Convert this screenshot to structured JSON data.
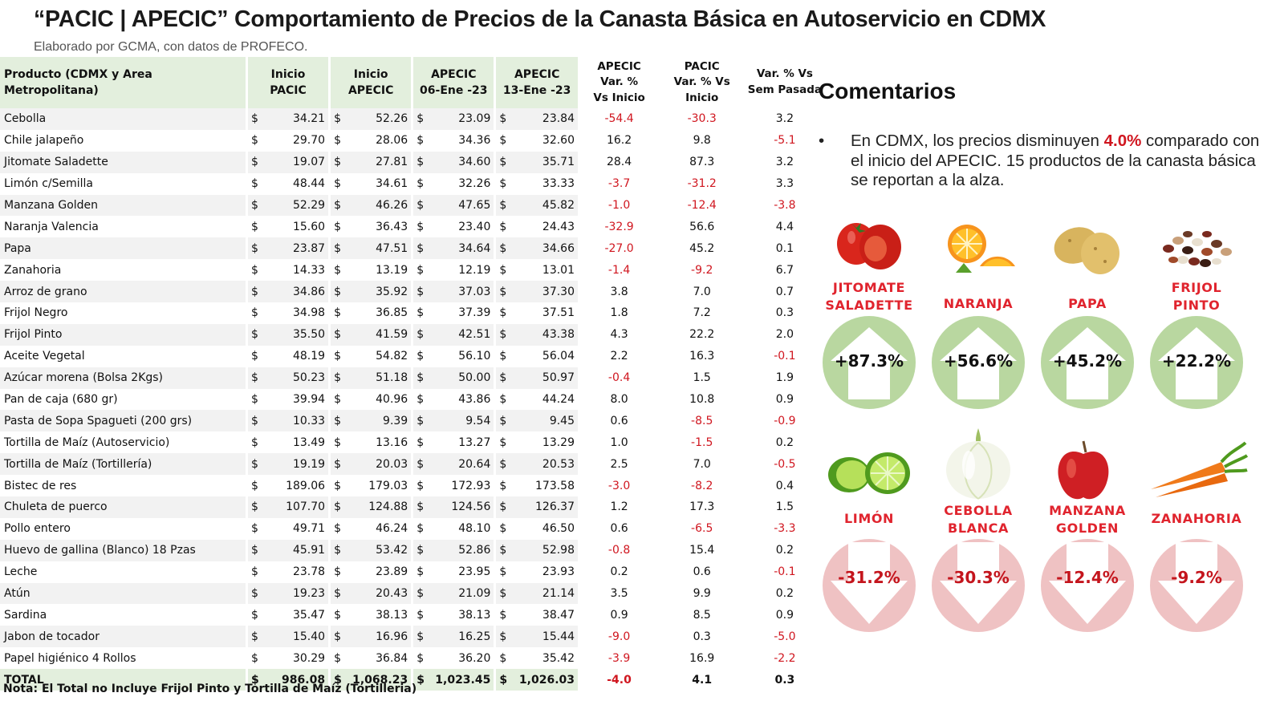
{
  "header": {
    "title": "“PACIC | APECIC” Comportamiento de Precios de la Canasta Básica en Autoservicio en CDMX",
    "subtitle": "Elaborado por GCMA, con datos de PROFECO."
  },
  "table": {
    "headers": {
      "product": "Producto (CDMX y Area Metropolitana)",
      "inicio_pacic": [
        "Inicio",
        "PACIC"
      ],
      "inicio_apecic": [
        "Inicio",
        "APECIC"
      ],
      "apecic_06": [
        "APECIC",
        "06-Ene -23"
      ],
      "apecic_13": [
        "APECIC",
        "13-Ene -23"
      ],
      "var_apecic": [
        "APECIC",
        "Var. %",
        "Vs  Inicio"
      ],
      "var_pacic": [
        "PACIC",
        "Var. % Vs",
        "Inicio"
      ],
      "var_sem": [
        "Var. % Vs",
        "Sem Pasada"
      ]
    },
    "currency": "$",
    "rows": [
      {
        "product": "Cebolla",
        "inicio_pacic": "34.21",
        "inicio_apecic": "52.26",
        "apecic_06": "23.09",
        "apecic_13": "23.84",
        "var_apecic": "-54.4",
        "var_pacic": "-30.3",
        "var_sem": "3.2"
      },
      {
        "product": "Chile jalapeño",
        "inicio_pacic": "29.70",
        "inicio_apecic": "28.06",
        "apecic_06": "34.36",
        "apecic_13": "32.60",
        "var_apecic": "16.2",
        "var_pacic": "9.8",
        "var_sem": "-5.1"
      },
      {
        "product": "Jitomate Saladette",
        "inicio_pacic": "19.07",
        "inicio_apecic": "27.81",
        "apecic_06": "34.60",
        "apecic_13": "35.71",
        "var_apecic": "28.4",
        "var_pacic": "87.3",
        "var_sem": "3.2"
      },
      {
        "product": "Limón c/Semilla",
        "inicio_pacic": "48.44",
        "inicio_apecic": "34.61",
        "apecic_06": "32.26",
        "apecic_13": "33.33",
        "var_apecic": "-3.7",
        "var_pacic": "-31.2",
        "var_sem": "3.3"
      },
      {
        "product": "Manzana Golden",
        "inicio_pacic": "52.29",
        "inicio_apecic": "46.26",
        "apecic_06": "47.65",
        "apecic_13": "45.82",
        "var_apecic": "-1.0",
        "var_pacic": "-12.4",
        "var_sem": "-3.8"
      },
      {
        "product": "Naranja Valencia",
        "inicio_pacic": "15.60",
        "inicio_apecic": "36.43",
        "apecic_06": "23.40",
        "apecic_13": "24.43",
        "var_apecic": "-32.9",
        "var_pacic": "56.6",
        "var_sem": "4.4"
      },
      {
        "product": "Papa",
        "inicio_pacic": "23.87",
        "inicio_apecic": "47.51",
        "apecic_06": "34.64",
        "apecic_13": "34.66",
        "var_apecic": "-27.0",
        "var_pacic": "45.2",
        "var_sem": "0.1"
      },
      {
        "product": "Zanahoria",
        "inicio_pacic": "14.33",
        "inicio_apecic": "13.19",
        "apecic_06": "12.19",
        "apecic_13": "13.01",
        "var_apecic": "-1.4",
        "var_pacic": "-9.2",
        "var_sem": "6.7"
      },
      {
        "product": "Arroz de grano",
        "inicio_pacic": "34.86",
        "inicio_apecic": "35.92",
        "apecic_06": "37.03",
        "apecic_13": "37.30",
        "var_apecic": "3.8",
        "var_pacic": "7.0",
        "var_sem": "0.7"
      },
      {
        "product": "Frijol Negro",
        "inicio_pacic": "34.98",
        "inicio_apecic": "36.85",
        "apecic_06": "37.39",
        "apecic_13": "37.51",
        "var_apecic": "1.8",
        "var_pacic": "7.2",
        "var_sem": "0.3"
      },
      {
        "product": "Frijol Pinto",
        "inicio_pacic": "35.50",
        "inicio_apecic": "41.59",
        "apecic_06": "42.51",
        "apecic_13": "43.38",
        "var_apecic": "4.3",
        "var_pacic": "22.2",
        "var_sem": "2.0"
      },
      {
        "product": "Aceite Vegetal",
        "inicio_pacic": "48.19",
        "inicio_apecic": "54.82",
        "apecic_06": "56.10",
        "apecic_13": "56.04",
        "var_apecic": "2.2",
        "var_pacic": "16.3",
        "var_sem": "-0.1"
      },
      {
        "product": "Azúcar morena (Bolsa 2Kgs)",
        "inicio_pacic": "50.23",
        "inicio_apecic": "51.18",
        "apecic_06": "50.00",
        "apecic_13": "50.97",
        "var_apecic": "-0.4",
        "var_pacic": "1.5",
        "var_sem": "1.9"
      },
      {
        "product": "Pan de caja (680 gr)",
        "inicio_pacic": "39.94",
        "inicio_apecic": "40.96",
        "apecic_06": "43.86",
        "apecic_13": "44.24",
        "var_apecic": "8.0",
        "var_pacic": "10.8",
        "var_sem": "0.9"
      },
      {
        "product": "Pasta de Sopa Spagueti (200 grs)",
        "inicio_pacic": "10.33",
        "inicio_apecic": "9.39",
        "apecic_06": "9.54",
        "apecic_13": "9.45",
        "var_apecic": "0.6",
        "var_pacic": "-8.5",
        "var_sem": "-0.9"
      },
      {
        "product": "Tortilla de Maíz (Autoservicio)",
        "inicio_pacic": "13.49",
        "inicio_apecic": "13.16",
        "apecic_06": "13.27",
        "apecic_13": "13.29",
        "var_apecic": "1.0",
        "var_pacic": "-1.5",
        "var_sem": "0.2"
      },
      {
        "product": "Tortilla de Maíz (Tortillería)",
        "inicio_pacic": "19.19",
        "inicio_apecic": "20.03",
        "apecic_06": "20.64",
        "apecic_13": "20.53",
        "var_apecic": "2.5",
        "var_pacic": "7.0",
        "var_sem": "-0.5"
      },
      {
        "product": "Bistec de res",
        "inicio_pacic": "189.06",
        "inicio_apecic": "179.03",
        "apecic_06": "172.93",
        "apecic_13": "173.58",
        "var_apecic": "-3.0",
        "var_pacic": "-8.2",
        "var_sem": "0.4"
      },
      {
        "product": "Chuleta de puerco",
        "inicio_pacic": "107.70",
        "inicio_apecic": "124.88",
        "apecic_06": "124.56",
        "apecic_13": "126.37",
        "var_apecic": "1.2",
        "var_pacic": "17.3",
        "var_sem": "1.5"
      },
      {
        "product": "Pollo entero",
        "inicio_pacic": "49.71",
        "inicio_apecic": "46.24",
        "apecic_06": "48.10",
        "apecic_13": "46.50",
        "var_apecic": "0.6",
        "var_pacic": "-6.5",
        "var_sem": "-3.3"
      },
      {
        "product": "Huevo de gallina (Blanco) 18 Pzas",
        "inicio_pacic": "45.91",
        "inicio_apecic": "53.42",
        "apecic_06": "52.86",
        "apecic_13": "52.98",
        "var_apecic": "-0.8",
        "var_pacic": "15.4",
        "var_sem": "0.2"
      },
      {
        "product": "Leche",
        "inicio_pacic": "23.78",
        "inicio_apecic": "23.89",
        "apecic_06": "23.95",
        "apecic_13": "23.93",
        "var_apecic": "0.2",
        "var_pacic": "0.6",
        "var_sem": "-0.1"
      },
      {
        "product": "Atún",
        "inicio_pacic": "19.23",
        "inicio_apecic": "20.43",
        "apecic_06": "21.09",
        "apecic_13": "21.14",
        "var_apecic": "3.5",
        "var_pacic": "9.9",
        "var_sem": "0.2"
      },
      {
        "product": "Sardina",
        "inicio_pacic": "35.47",
        "inicio_apecic": "38.13",
        "apecic_06": "38.13",
        "apecic_13": "38.47",
        "var_apecic": "0.9",
        "var_pacic": "8.5",
        "var_sem": "0.9"
      },
      {
        "product": "Jabon de tocador",
        "inicio_pacic": "15.40",
        "inicio_apecic": "16.96",
        "apecic_06": "16.25",
        "apecic_13": "15.44",
        "var_apecic": "-9.0",
        "var_pacic": "0.3",
        "var_sem": "-5.0"
      },
      {
        "product": "Papel higiénico 4 Rollos",
        "inicio_pacic": "30.29",
        "inicio_apecic": "36.84",
        "apecic_06": "36.20",
        "apecic_13": "35.42",
        "var_apecic": "-3.9",
        "var_pacic": "16.9",
        "var_sem": "-2.2"
      }
    ],
    "total": {
      "product": "TOTAL",
      "inicio_pacic": "986.08",
      "inicio_apecic": "1,068.23",
      "apecic_06": "1,023.45",
      "apecic_13": "1,026.03",
      "var_apecic": "-4.0",
      "var_pacic": "4.1",
      "var_sem": "0.3"
    },
    "note": "Nota: El Total no Incluye Frijol Pinto y Tortilla de Maíz (Tortilleria)"
  },
  "comments": {
    "heading": "Comentarios",
    "bullet_symbol": "•",
    "text_before": "En CDMX, los precios disminuyen ",
    "highlight": "4.0%",
    "text_after": " comparado con el inicio del APECIC. 15 productos de la canasta básica se reportan a la alza."
  },
  "cards": [
    {
      "label": [
        "JITOMATE",
        "SALADETTE"
      ],
      "pct": "+87.3%",
      "dir": "up",
      "icon": "tomato-icon"
    },
    {
      "label": [
        "NARANJA"
      ],
      "pct": "+56.6%",
      "dir": "up",
      "icon": "orange-icon"
    },
    {
      "label": [
        "PAPA"
      ],
      "pct": "+45.2%",
      "dir": "up",
      "icon": "potato-icon"
    },
    {
      "label": [
        "FRIJOL",
        "PINTO"
      ],
      "pct": "+22.2%",
      "dir": "up",
      "icon": "beans-icon"
    },
    {
      "label": [
        "LIMÓN"
      ],
      "pct": "-31.2%",
      "dir": "down",
      "icon": "lime-icon"
    },
    {
      "label": [
        "CEBOLLA",
        "BLANCA"
      ],
      "pct": "-30.3%",
      "dir": "down",
      "icon": "onion-icon"
    },
    {
      "label": [
        "MANZANA",
        "GOLDEN"
      ],
      "pct": "-12.4%",
      "dir": "down",
      "icon": "apple-icon"
    },
    {
      "label": [
        "ZANAHORIA"
      ],
      "pct": "-9.2%",
      "dir": "down",
      "icon": "carrot-icon"
    }
  ],
  "colors": {
    "up_circle": "#b9d7a0",
    "down_circle": "#efc2c3",
    "negative": "#d0161f",
    "label_red": "#e0242e",
    "header_green": "#e3efdd",
    "row_alt": "#f2f2f2"
  }
}
